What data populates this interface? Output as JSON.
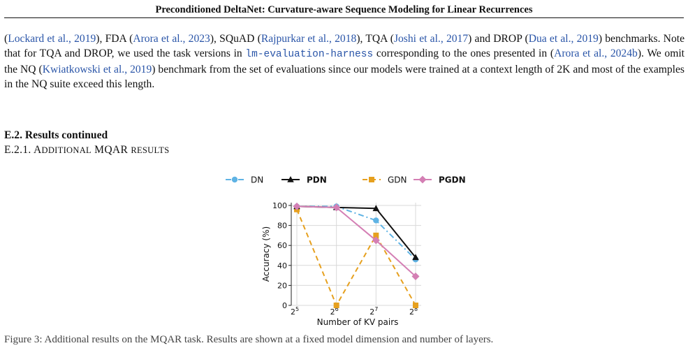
{
  "header": {
    "title": "Preconditioned DeltaNet: Curvature-aware Sequence Modeling for Linear Recurrences"
  },
  "paragraph": {
    "segments": [
      {
        "t": "(",
        "c": false
      },
      {
        "t": "Lockard et al.,",
        "c": true
      },
      {
        "t": " ",
        "c": false
      },
      {
        "t": "2019",
        "c": true
      },
      {
        "t": "), FDA (",
        "c": false
      },
      {
        "t": "Arora et al.,",
        "c": true
      },
      {
        "t": " ",
        "c": false
      },
      {
        "t": "2023",
        "c": true
      },
      {
        "t": "), SQuAD (",
        "c": false
      },
      {
        "t": "Rajpurkar et al.,",
        "c": true
      },
      {
        "t": " ",
        "c": false
      },
      {
        "t": "2018",
        "c": true
      },
      {
        "t": "), TQA (",
        "c": false
      },
      {
        "t": "Joshi et al.,",
        "c": true
      },
      {
        "t": " ",
        "c": false
      },
      {
        "t": "2017",
        "c": true
      },
      {
        "t": ") and DROP (",
        "c": false
      },
      {
        "t": "Dua et al.,",
        "c": true
      },
      {
        "t": " ",
        "c": false
      },
      {
        "t": "2019",
        "c": true
      },
      {
        "t": ") benchmarks. Note that for TQA and DROP, we used the task versions in ",
        "c": false
      },
      {
        "t": "lm-evaluation-harness",
        "c": true,
        "mono": true
      },
      {
        "t": " corresponding to the ones presented in (",
        "c": false
      },
      {
        "t": "Arora et al.,",
        "c": true
      },
      {
        "t": " ",
        "c": false
      },
      {
        "t": "2024b",
        "c": true
      },
      {
        "t": "). We omit the NQ (",
        "c": false
      },
      {
        "t": "Kwiatkowski et al.,",
        "c": true
      },
      {
        "t": " ",
        "c": false
      },
      {
        "t": "2019",
        "c": true
      },
      {
        "t": ") benchmark from the set of evaluations since our models were trained at a context length of 2K and most of the examples in the NQ suite exceed this length.",
        "c": false
      }
    ]
  },
  "section": {
    "title": "E.2. Results continued"
  },
  "subsection": {
    "number": "E.2.1.",
    "title_cap1": "A",
    "title_sc1": "DDITIONAL",
    "title_mid": " MQAR ",
    "title_sc2": "RESULTS"
  },
  "bottom_text": "Figure 3: Additional results on the MQAR task. Results are shown at a fixed model dimension and number of layers.",
  "colors": {
    "DN": "#5fb3e4",
    "PDN": "#111111",
    "GDN": "#e6a01e",
    "PGDN": "#d47fb4",
    "link": "#2a55a8"
  },
  "chart_data": {
    "type": "line",
    "xlabel": "Number of KV pairs",
    "ylabel": "Accuracy (%)",
    "x_exponents": [
      5,
      6,
      7,
      8
    ],
    "x_tick_base": "2",
    "ylim": [
      0,
      100
    ],
    "yticks": [
      0,
      20,
      40,
      60,
      80,
      100
    ],
    "grid": true,
    "legend_placement": "top",
    "series": [
      {
        "name": "DN",
        "bold": false,
        "style": "dashdot",
        "marker": "circle",
        "values": [
          99,
          99,
          85,
          46
        ]
      },
      {
        "name": "PDN",
        "bold": true,
        "style": "solid",
        "marker": "triangle",
        "values": [
          99,
          98,
          97,
          48
        ]
      },
      {
        "name": "GDN",
        "bold": false,
        "style": "dashed",
        "marker": "square",
        "values": [
          96,
          0,
          70,
          0
        ]
      },
      {
        "name": "PGDN",
        "bold": true,
        "style": "solid",
        "marker": "diamond",
        "values": [
          99,
          98,
          65,
          29
        ]
      }
    ]
  }
}
